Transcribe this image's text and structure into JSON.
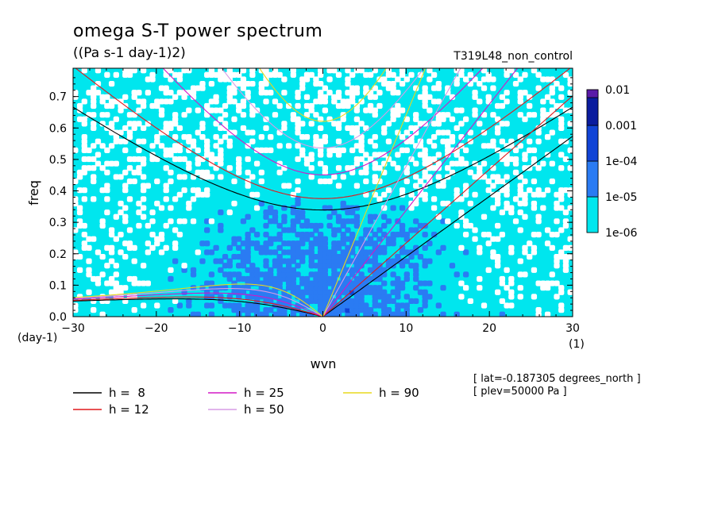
{
  "chart_data": {
    "type": "heatmap",
    "title": "omega S-T power spectrum",
    "subtitle": "((Pa s-1 day-1)2)",
    "run_label": "T319L48_non_control",
    "xlabel": "wvn",
    "ylabel": "freq",
    "x_unit": "(1)",
    "y_unit": "(day-1)",
    "xlim": [
      -30,
      30
    ],
    "ylim": [
      0,
      0.79
    ],
    "x_ticks": [
      "-30",
      "-20",
      "-10",
      "0",
      "10",
      "20",
      "30"
    ],
    "y_ticks": [
      "0.0",
      "0.1",
      "0.2",
      "0.3",
      "0.4",
      "0.5",
      "0.6",
      "0.7"
    ],
    "colorbar": {
      "scale": "log",
      "levels": [
        "0.01",
        "0.001",
        "1e-04",
        "1e-05",
        "1e-06"
      ],
      "colors": [
        "#5a1aa8",
        "#0a1c9e",
        "#1144d6",
        "#2a7bf3",
        "#00e6ee"
      ],
      "below_min_color": "#ffffff"
    },
    "dispersion_curves": [
      {
        "name": "h =  8",
        "h": 8,
        "color": "#000000"
      },
      {
        "name": "h = 12",
        "h": 12,
        "color": "#e0191d"
      },
      {
        "name": "h = 25",
        "h": 25,
        "color": "#d418c6"
      },
      {
        "name": "h = 50",
        "h": 50,
        "color": "#d79be6"
      },
      {
        "name": "h = 90",
        "h": 90,
        "color": "#e8d81f"
      }
    ],
    "annotations": [
      "[ lat=-0.187305 degrees_north ]",
      "[ plev=50000 Pa ]"
    ]
  }
}
